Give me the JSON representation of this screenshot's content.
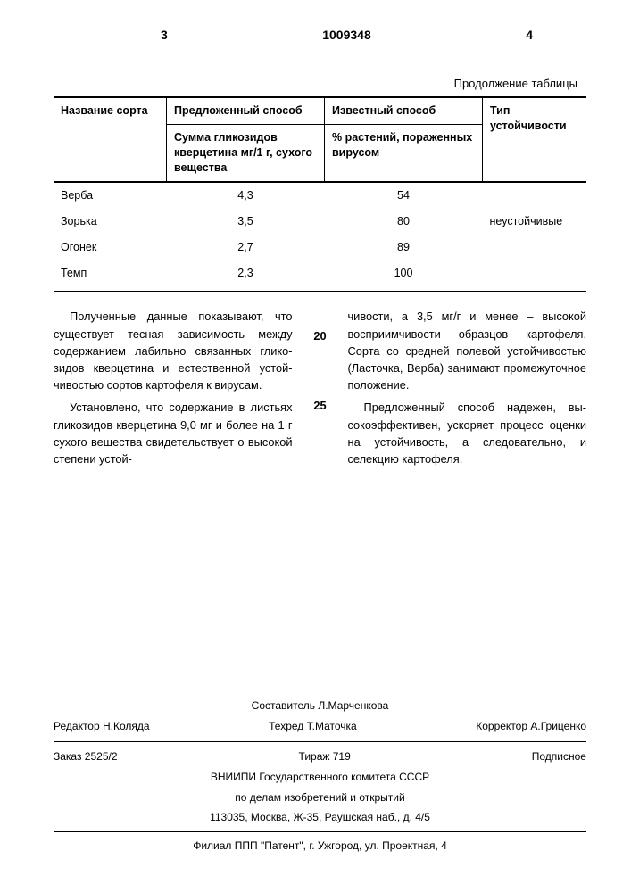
{
  "header": {
    "left_page": "3",
    "doc_number": "1009348",
    "right_page": "4"
  },
  "table": {
    "continuation": "Продолжение таблицы",
    "headers": {
      "col1_top": "Название сорта",
      "col2_top": "Предложенный способ",
      "col3_top": "Известный способ",
      "col4_top": "Тип устойчивости",
      "col2_sub": "Сумма гликозидов кверцетина мг/1 г, сухого вещества",
      "col3_sub": "% растений, пораженных вирусом"
    },
    "rows": [
      {
        "name": "Верба",
        "v1": "4,3",
        "v2": "54",
        "type": ""
      },
      {
        "name": "Зорька",
        "v1": "3,5",
        "v2": "80",
        "type": "неустойчивые"
      },
      {
        "name": "Огонек",
        "v1": "2,7",
        "v2": "89",
        "type": ""
      },
      {
        "name": "Темп",
        "v1": "2,3",
        "v2": "100",
        "type": ""
      }
    ]
  },
  "line_numbers": {
    "n20": "20",
    "n25": "25"
  },
  "body": {
    "left_p1": "Полученные данные показывают, что существует тесная зависимость между содержанием лабильно связанных глико­зидов кверцетина и естественной устой­чивостью сортов картофеля к вирусам.",
    "left_p2": "Установлено, что содержание в ли­стьях гликозидов кверцетина 9,0 мг и более на 1 г сухого вещества свиде­тельствует о высокой степени устой-",
    "right_p1": "чивости, а 3,5 мг/г и менее – высокой восприимчивости образцов картофеля. Сорта со средней полевой устойчивостью (Ласточка, Верба) занимают проме­жуточное положение.",
    "right_p2": "Предложенный способ надежен, вы­сокоэффективен, ускоряет процесс оценки на устойчивость, а следова­тельно, и селекцию картофеля."
  },
  "footer": {
    "sostavitel": "Составитель Л.Марченкова",
    "redaktor": "Редактор Н.Коляда",
    "tehred": "Техред Т.Маточка",
    "korrektor": "Корректор А.Гриценко",
    "zakaz": "Заказ 2525/2",
    "tirazh": "Тираж 719",
    "podpisnoe": "Подписное",
    "org1": "ВНИИПИ Государственного комитета СССР",
    "org2": "по делам изобретений и открытий",
    "addr1": "113035, Москва, Ж-35, Раушская наб., д. 4/5",
    "filial": "Филиал ППП \"Патент\", г. Ужгород, ул. Проектная, 4"
  }
}
